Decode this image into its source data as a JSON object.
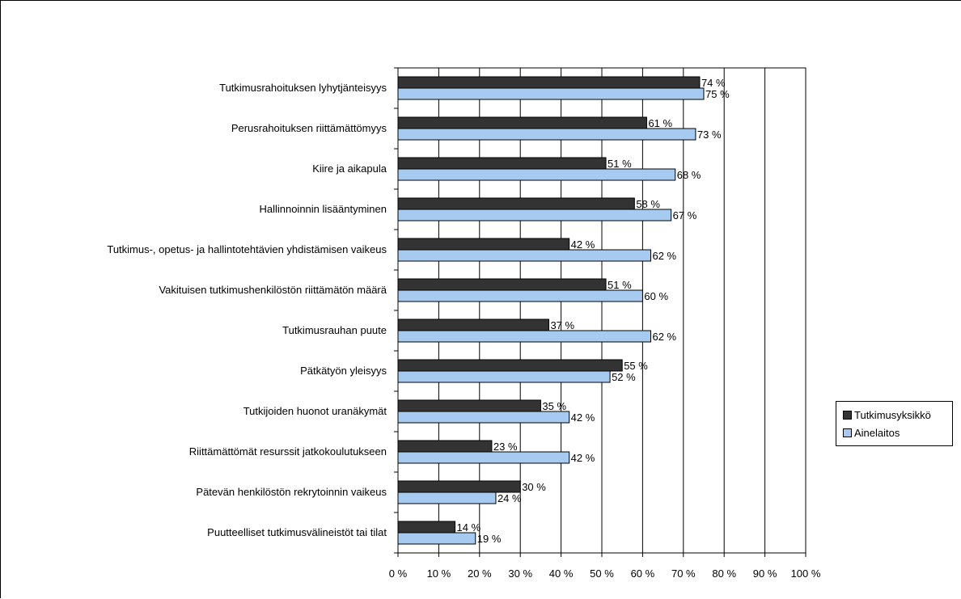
{
  "chart_data": {
    "type": "bar",
    "orientation": "horizontal",
    "categories": [
      "Tutkimusrahoituksen lyhytjänteisyys",
      "Perusrahoituksen riittämättömyys",
      "Kiire ja aikapula",
      "Hallinnoinnin lisääntyminen",
      "Tutkimus-, opetus- ja hallintotehtävien yhdistämisen vaikeus",
      "Vakituisen tutkimushenkilöstön riittämätön määrä",
      "Tutkimusrauhan puute",
      "Pätkätyön yleisyys",
      "Tutkijoiden huonot uranäkymät",
      "Riittämättömät resurssit jatkokoulutukseen",
      "Pätevän henkilöstön rekrytoinnin vaikeus",
      "Puutteelliset tutkimusvälineistöt tai tilat"
    ],
    "series": [
      {
        "name": "Tutkimusyksikkö",
        "color": "#333333",
        "values": [
          74,
          61,
          51,
          58,
          42,
          51,
          37,
          55,
          35,
          23,
          30,
          14
        ],
        "labels": [
          "74 %",
          "61 %",
          "51 %",
          "58 %",
          "42 %",
          "51 %",
          "37 %",
          "55 %",
          "35 %",
          "23 %",
          "30 %",
          "14 %"
        ]
      },
      {
        "name": "Ainelaitos",
        "color": "#a6caf0",
        "values": [
          75,
          73,
          68,
          67,
          62,
          60,
          62,
          52,
          42,
          42,
          24,
          19
        ],
        "labels": [
          "75 %",
          "73 %",
          "68 %",
          "67 %",
          "62 %",
          "60 %",
          "62 %",
          "52 %",
          "42 %",
          "42 %",
          "24 %",
          "19 %"
        ]
      }
    ],
    "xlim": [
      0,
      100
    ],
    "x_ticks": [
      0,
      10,
      20,
      30,
      40,
      50,
      60,
      70,
      80,
      90,
      100
    ],
    "x_tick_labels": [
      "0 %",
      "10 %",
      "20 %",
      "30 %",
      "40 %",
      "50 %",
      "60 %",
      "70 %",
      "80 %",
      "90 %",
      "100 %"
    ],
    "grid": true,
    "legend": "right",
    "title": "",
    "xlabel": "",
    "ylabel": ""
  }
}
